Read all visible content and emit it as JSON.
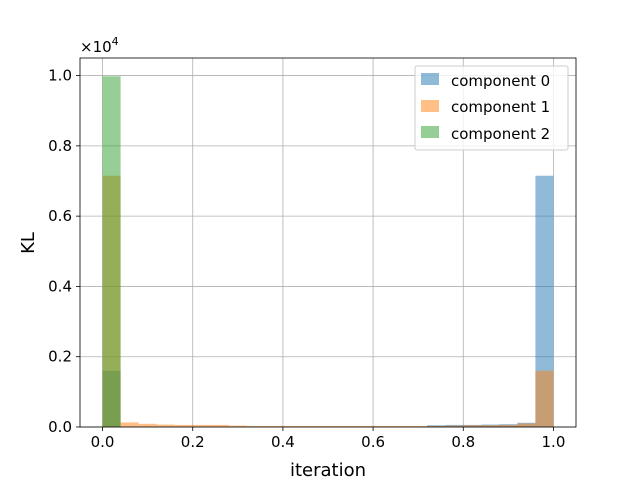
{
  "chart_data": {
    "type": "bar",
    "xlabel": "iteration",
    "ylabel": "KL",
    "y_scale_label": "×10",
    "y_scale_exponent": "4",
    "xlim": [
      -0.05,
      1.05
    ],
    "ylim": [
      0,
      10500
    ],
    "x_ticks": [
      0.0,
      0.2,
      0.4,
      0.6,
      0.8,
      1.0
    ],
    "x_tick_labels": [
      "0.0",
      "0.2",
      "0.4",
      "0.6",
      "0.8",
      "1.0"
    ],
    "y_ticks": [
      0,
      2000,
      4000,
      6000,
      8000,
      10000
    ],
    "y_tick_labels": [
      "0.0",
      "0.2",
      "0.4",
      "0.6",
      "0.8",
      "1.0"
    ],
    "grid": true,
    "legend_position": "top-right",
    "bin_edges": [
      0.0,
      0.04,
      0.08,
      0.12,
      0.16,
      0.2,
      0.24,
      0.28,
      0.32,
      0.36,
      0.4,
      0.44,
      0.48,
      0.52,
      0.56,
      0.6,
      0.64,
      0.68,
      0.72,
      0.76,
      0.8,
      0.84,
      0.88,
      0.92,
      0.96,
      1.0
    ],
    "series": [
      {
        "name": "component 0",
        "color": "#1f77b4",
        "values": [
          1600,
          0,
          0,
          0,
          0,
          0,
          0,
          0,
          0,
          0,
          0,
          0,
          0,
          0,
          0,
          0,
          0,
          0,
          50,
          60,
          60,
          70,
          80,
          120,
          7150
        ]
      },
      {
        "name": "component 1",
        "color": "#ff7f0e",
        "values": [
          7150,
          130,
          90,
          70,
          60,
          60,
          60,
          40,
          30,
          30,
          30,
          30,
          30,
          30,
          30,
          30,
          30,
          30,
          30,
          40,
          50,
          50,
          60,
          100,
          1600
        ]
      },
      {
        "name": "component 2",
        "color": "#2ca02c",
        "values": [
          9980,
          0,
          0,
          0,
          0,
          0,
          0,
          0,
          0,
          0,
          0,
          0,
          0,
          0,
          0,
          0,
          0,
          0,
          0,
          0,
          0,
          0,
          0,
          0,
          0
        ]
      }
    ]
  }
}
